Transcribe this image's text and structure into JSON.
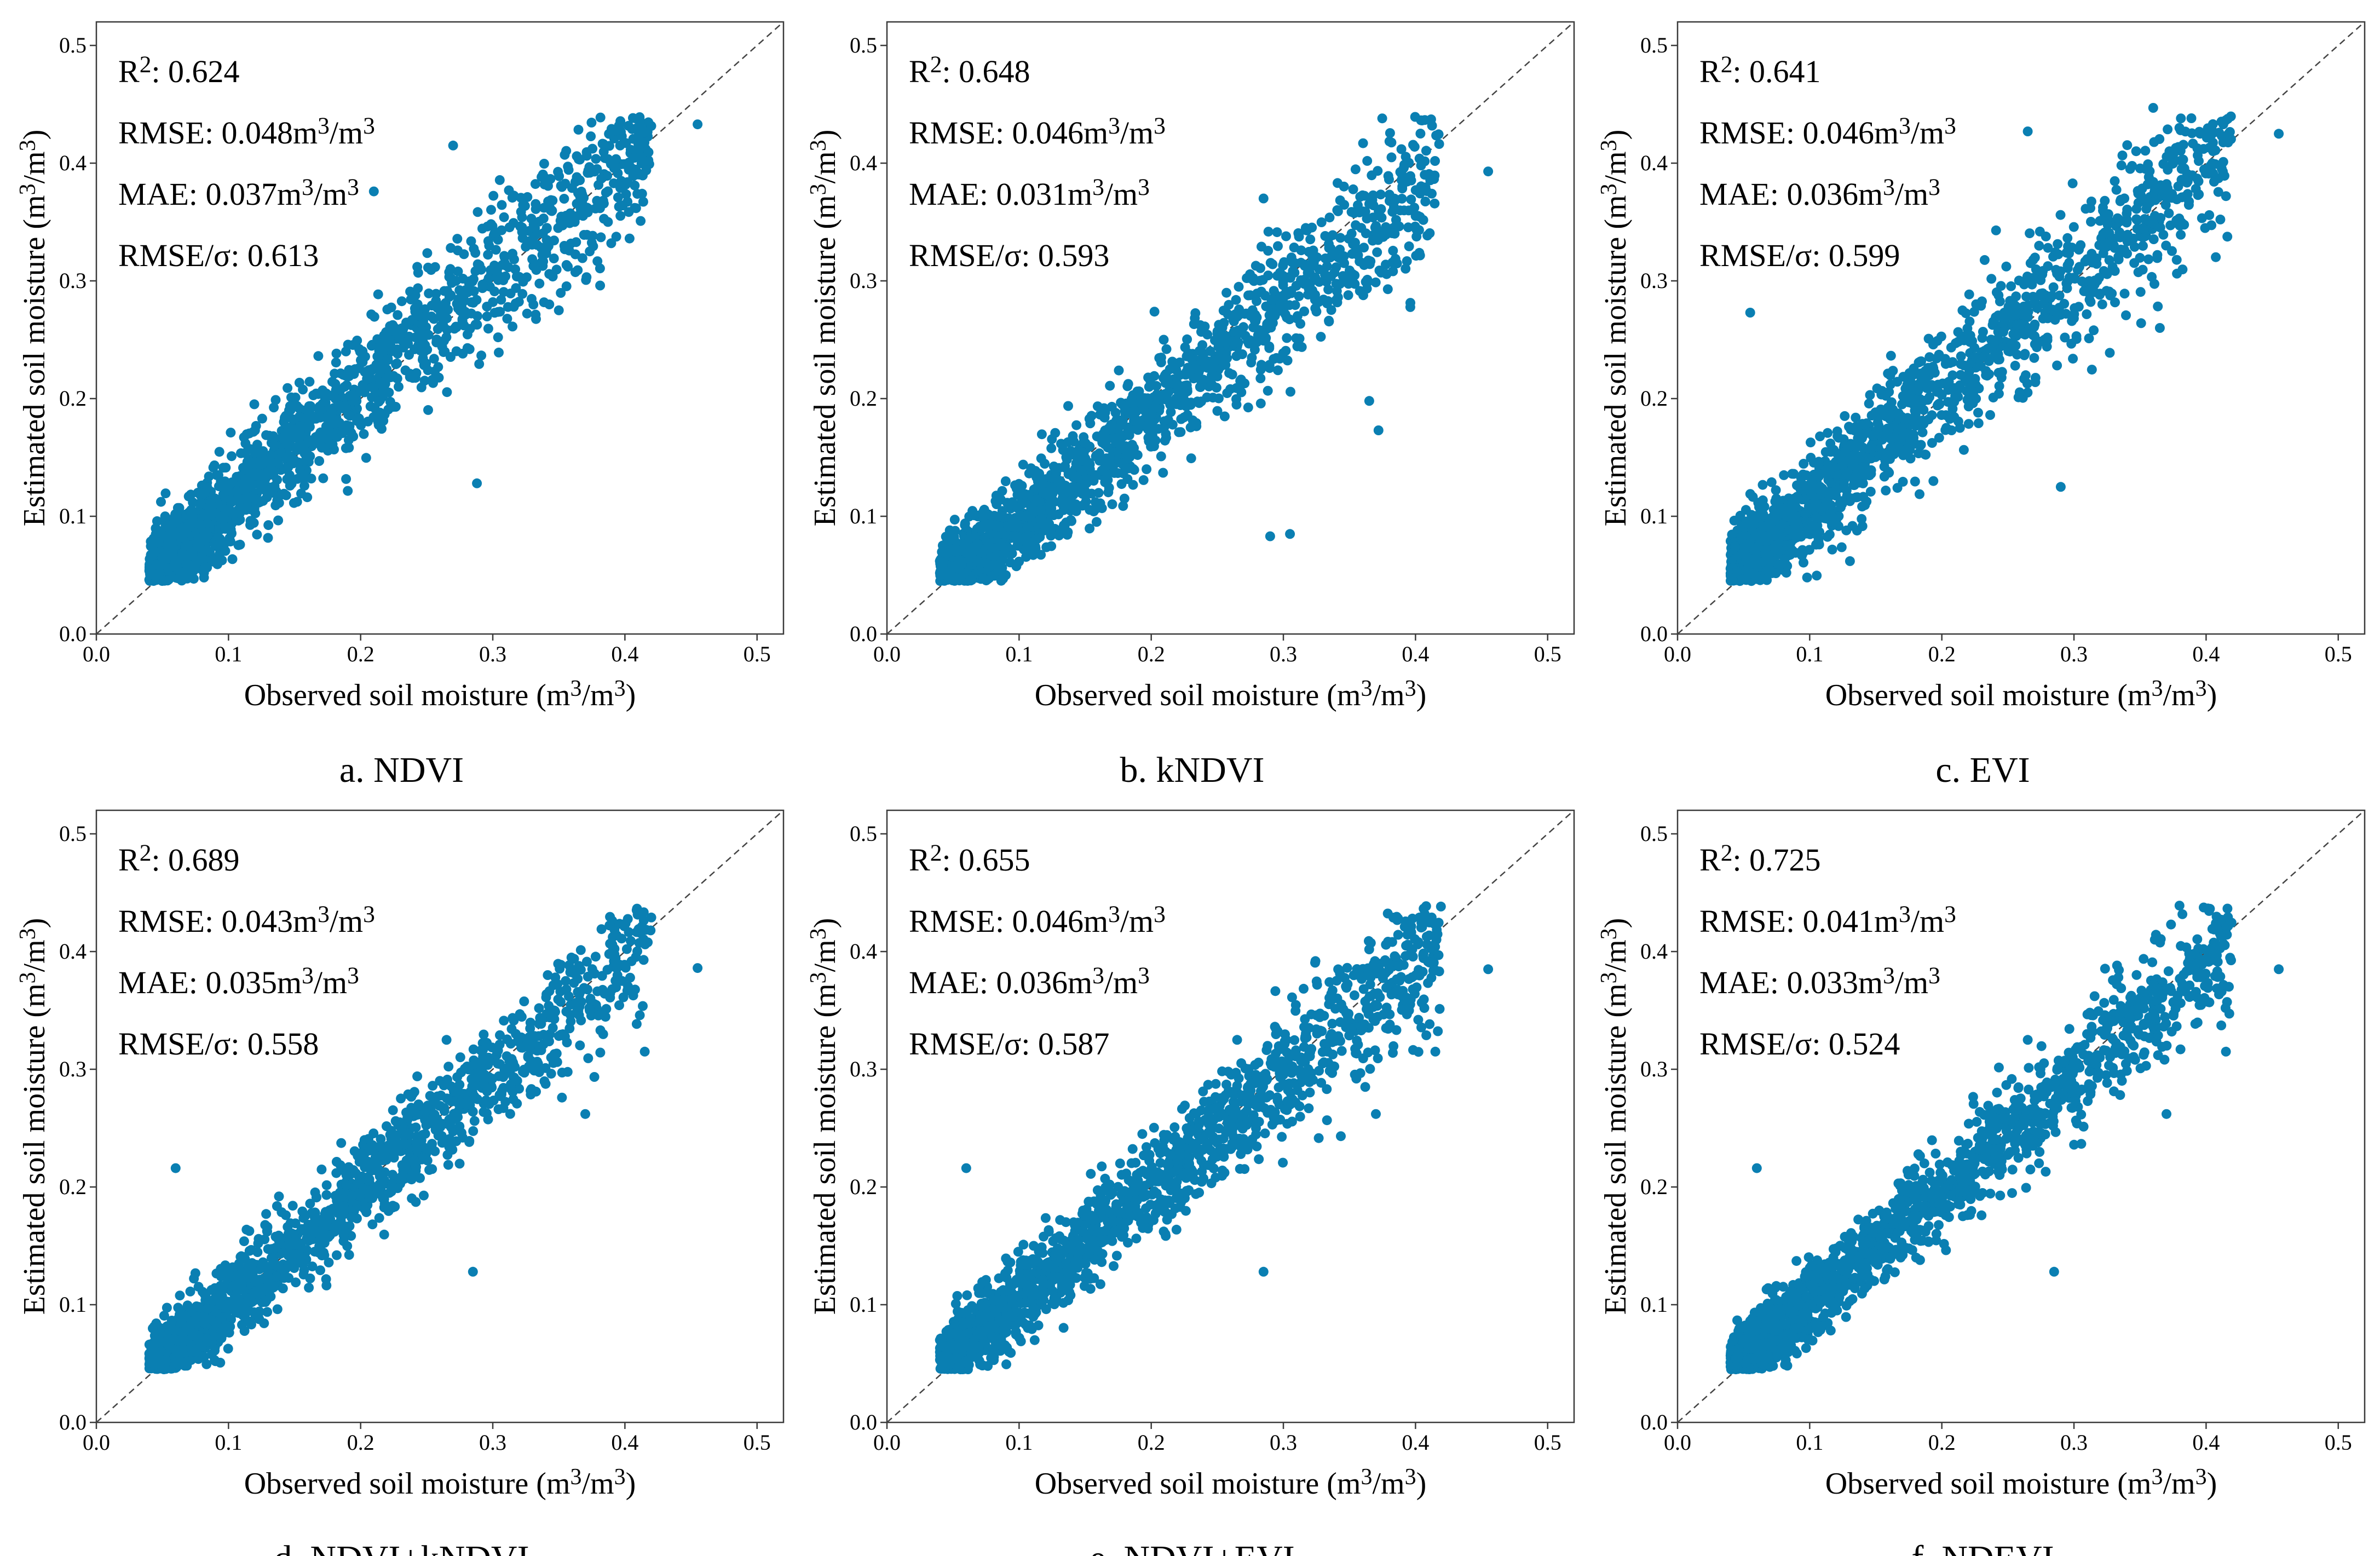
{
  "figure": {
    "point_color": "#0a7fb2",
    "diagonal_style": "dashed 1:1 line",
    "axis_tick_labels": [
      "0.0",
      "0.1",
      "0.2",
      "0.3",
      "0.4",
      "0.5"
    ]
  },
  "chart_data": [
    {
      "type": "scatter",
      "caption": "a. NDVI",
      "xlabel": "Observed soil moisture (m³/m³)",
      "ylabel": "Estimated soil moisture (m³/m³)",
      "xlim": [
        0.0,
        0.52
      ],
      "ylim": [
        0.0,
        0.52
      ],
      "stats": [
        "R²: 0.624",
        "RMSE: 0.048m³/m³",
        "MAE: 0.037m³/m³",
        "RMSE/σ: 0.613"
      ],
      "bias": 0.012,
      "noise": 0.036,
      "outliers": [
        [
          0.455,
          0.433
        ],
        [
          0.27,
          0.415
        ],
        [
          0.288,
          0.128
        ],
        [
          0.21,
          0.376
        ],
        [
          0.35,
          0.275
        ]
      ]
    },
    {
      "type": "scatter",
      "caption": "b. kNDVI",
      "xlabel": "Observed soil moisture (m³/m³)",
      "ylabel": "Estimated soil moisture (m³/m³)",
      "xlim": [
        0.0,
        0.52
      ],
      "ylim": [
        0.0,
        0.52
      ],
      "stats": [
        "R²: 0.648",
        "RMSE: 0.046m³/m³",
        "MAE: 0.031m³/m³",
        "RMSE/σ: 0.593"
      ],
      "bias": -0.012,
      "noise": 0.034,
      "outliers": [
        [
          0.455,
          0.393
        ],
        [
          0.29,
          0.083
        ],
        [
          0.305,
          0.085
        ],
        [
          0.365,
          0.198
        ],
        [
          0.372,
          0.173
        ],
        [
          0.285,
          0.37
        ]
      ]
    },
    {
      "type": "scatter",
      "caption": "c. EVI",
      "xlabel": "Observed soil moisture (m³/m³)",
      "ylabel": "Estimated soil moisture (m³/m³)",
      "xlim": [
        0.0,
        0.52
      ],
      "ylim": [
        0.0,
        0.52
      ],
      "stats": [
        "R²: 0.641",
        "RMSE: 0.046m³/m³",
        "MAE: 0.036m³/m³",
        "RMSE/σ: 0.599"
      ],
      "bias": 0.01,
      "noise": 0.038,
      "outliers": [
        [
          0.455,
          0.425
        ],
        [
          0.055,
          0.273
        ],
        [
          0.265,
          0.427
        ],
        [
          0.29,
          0.125
        ],
        [
          0.36,
          0.447
        ],
        [
          0.365,
          0.26
        ]
      ]
    },
    {
      "type": "scatter",
      "caption": "d. NDVI+kNDVI",
      "xlabel": "Observed soil moisture (m³/m³)",
      "ylabel": "Estimated soil moisture (m³/m³)",
      "xlim": [
        0.0,
        0.52
      ],
      "ylim": [
        0.0,
        0.52
      ],
      "stats": [
        "R²: 0.689",
        "RMSE: 0.043m³/m³",
        "MAE: 0.035m³/m³",
        "RMSE/σ: 0.558"
      ],
      "bias": 0.0,
      "noise": 0.03,
      "outliers": [
        [
          0.455,
          0.386
        ],
        [
          0.285,
          0.128
        ],
        [
          0.06,
          0.216
        ],
        [
          0.265,
          0.325
        ],
        [
          0.415,
          0.315
        ],
        [
          0.37,
          0.262
        ]
      ]
    },
    {
      "type": "scatter",
      "caption": "e. NDVI+EVI",
      "xlabel": "Observed soil moisture (m³/m³)",
      "ylabel": "Estimated soil moisture (m³/m³)",
      "xlim": [
        0.0,
        0.52
      ],
      "ylim": [
        0.0,
        0.52
      ],
      "stats": [
        "R²: 0.655",
        "RMSE: 0.046m³/m³",
        "MAE: 0.036m³/m³",
        "RMSE/σ: 0.587"
      ],
      "bias": 0.003,
      "noise": 0.032,
      "outliers": [
        [
          0.455,
          0.385
        ],
        [
          0.285,
          0.128
        ],
        [
          0.06,
          0.216
        ],
        [
          0.265,
          0.325
        ],
        [
          0.415,
          0.315
        ],
        [
          0.37,
          0.262
        ]
      ]
    },
    {
      "type": "scatter",
      "caption": "f. NDEVI",
      "xlabel": "Observed soil moisture (m³/m³)",
      "ylabel": "Estimated soil moisture (m³/m³)",
      "xlim": [
        0.0,
        0.52
      ],
      "ylim": [
        0.0,
        0.52
      ],
      "stats": [
        "R²: 0.725",
        "RMSE: 0.041m³/m³",
        "MAE: 0.033m³/m³",
        "RMSE/σ: 0.524"
      ],
      "bias": 0.0,
      "noise": 0.028,
      "outliers": [
        [
          0.455,
          0.385
        ],
        [
          0.285,
          0.128
        ],
        [
          0.06,
          0.216
        ],
        [
          0.265,
          0.325
        ],
        [
          0.415,
          0.315
        ],
        [
          0.37,
          0.262
        ]
      ]
    }
  ]
}
